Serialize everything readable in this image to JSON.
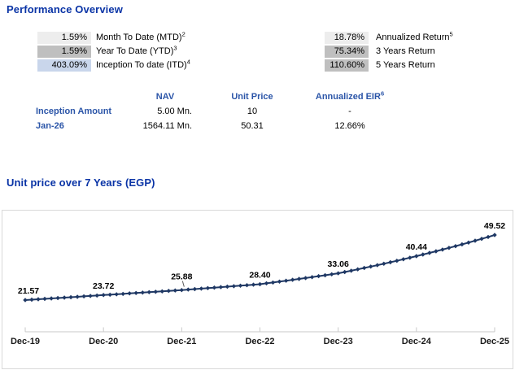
{
  "page": {
    "title": "Performance Overview",
    "chart_section_title": "Unit price over 7 Years (EGP)"
  },
  "metrics": {
    "left": [
      {
        "value": "1.59%",
        "label": "Month To Date (MTD)",
        "sup": "2",
        "bg": "#ededed"
      },
      {
        "value": "1.59%",
        "label": "Year To Date (YTD)",
        "sup": "3",
        "bg": "#bfbfbf"
      },
      {
        "value": "403.09%",
        "label": "Inception To date (ITD)",
        "sup": "4",
        "bg": "#c9d6eb"
      }
    ],
    "right": [
      {
        "value": "18.78%",
        "label": "Annualized Return",
        "sup": "5",
        "bg": "#ededed"
      },
      {
        "value": "75.34%",
        "label": "3 Years Return",
        "sup": "",
        "bg": "#bfbfbf"
      },
      {
        "value": "110.60%",
        "label": "5 Years Return",
        "sup": "",
        "bg": "#bfbfbf"
      }
    ]
  },
  "table": {
    "headers": {
      "nav": "NAV",
      "unit_price": "Unit Price",
      "eir": "Annualized EIR",
      "eir_sup": "6"
    },
    "rows": [
      {
        "label": "Inception Amount",
        "nav": "5.00 Mn.",
        "unit_price": "10",
        "eir": "-"
      },
      {
        "label": "Jan-26",
        "nav": "1564.11 Mn.",
        "unit_price": "50.31",
        "eir": "12.66%"
      }
    ]
  },
  "chart_data": {
    "type": "line",
    "title": "Unit price over 7 Years (EGP)",
    "series_name": "Unit Price (EGP)",
    "categories": [
      "Dec-19",
      "Dec-20",
      "Dec-21",
      "Dec-22",
      "Dec-23",
      "Dec-24",
      "Dec-25"
    ],
    "values": [
      21.57,
      23.72,
      25.88,
      28.4,
      33.06,
      40.44,
      49.52
    ],
    "data_labels": [
      "21.57",
      "23.72",
      "25.88",
      "28.40",
      "33.06",
      "40.44",
      "49.52"
    ],
    "marker": "diamond",
    "points_per_segment": 12,
    "interpolation": "geometric-monthly",
    "line_color": "#1f3864",
    "axis_color": "#c9c9c9",
    "label_color": "#000000",
    "grid": false,
    "legend": false,
    "xlabel": "",
    "ylabel": ""
  }
}
